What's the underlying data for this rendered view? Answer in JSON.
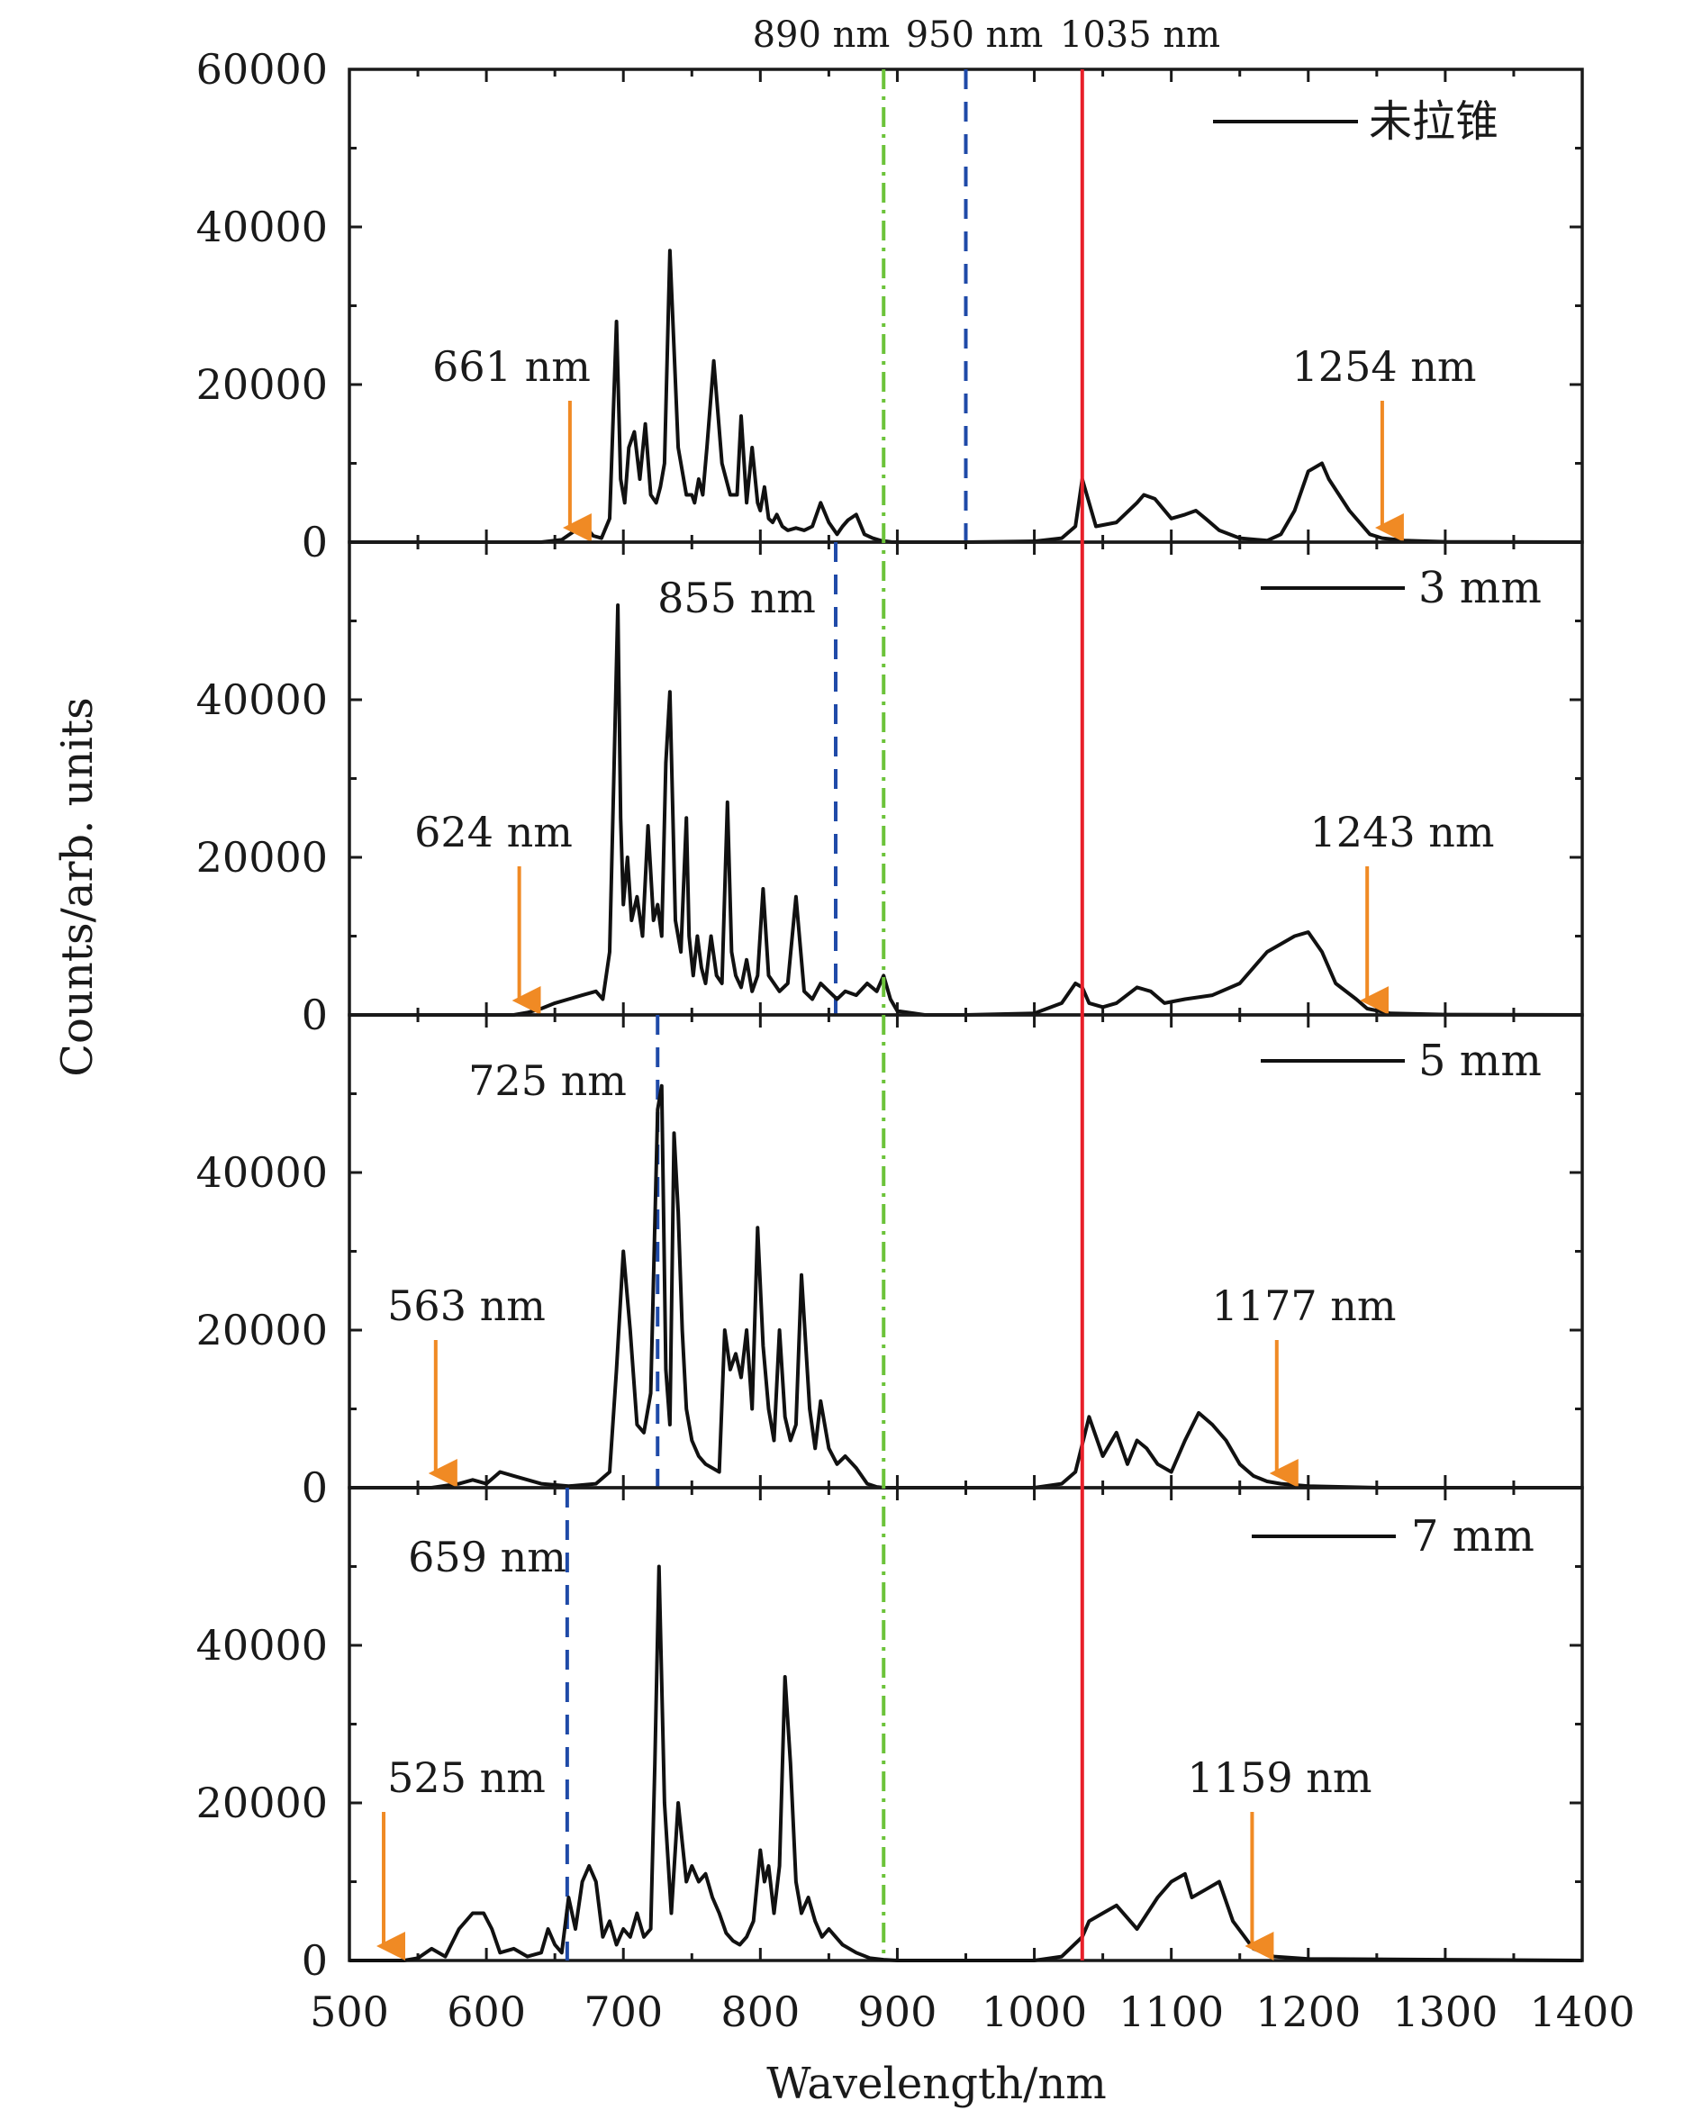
{
  "chart_data": {
    "type": "line",
    "xlabel": "Wavelength/nm",
    "ylabel": "Counts/arb. units",
    "xlim": [
      500,
      1400
    ],
    "ylim": [
      0,
      60000
    ],
    "x_ticks": [
      "500",
      "600",
      "700",
      "800",
      "900",
      "1000",
      "1100",
      "1200",
      "1300",
      "1400"
    ],
    "y_ticks": [
      "0",
      "20000",
      "40000",
      "60000"
    ],
    "colors": {
      "trace": "#111111",
      "red_line": "#e8202a",
      "blue_dash": "#1f4aa8",
      "green_dashdot": "#6cc33a",
      "arrow": "#f08a24"
    },
    "top_labels": [
      {
        "text": "890 nm",
        "x": 890
      },
      {
        "text": "950 nm",
        "x": 950
      },
      {
        "text": "1035 nm",
        "x": 1035
      }
    ],
    "reference_lines": [
      {
        "x": 890,
        "style": "dash-dot",
        "color": "green_dashdot"
      },
      {
        "x": 1035,
        "style": "solid",
        "color": "red_line"
      }
    ],
    "panels": [
      {
        "legend": "未拉锥",
        "blue_line": {
          "x": 950,
          "label": ""
        },
        "arrows": [
          {
            "x": 661,
            "label": "661 nm"
          },
          {
            "x": 1254,
            "label": "1254 nm"
          }
        ],
        "series": [
          {
            "x": [
              500,
              600,
              640,
              655,
              665,
              672,
              678,
              684,
              690,
              695,
              698,
              701,
              704,
              708,
              712,
              716,
              720,
              724,
              727,
              730,
              734,
              740,
              746,
              750,
              752,
              755,
              758,
              761,
              766,
              772,
              778,
              783,
              786,
              790,
              794,
              798,
              800,
              803,
              806,
              809,
              812,
              816,
              820,
              826,
              832,
              838,
              844,
              850,
              856,
              860,
              864,
              870,
              876,
              882,
              888,
              892,
              896,
              900,
              910,
              950,
              1000,
              1020,
              1030,
              1035,
              1040,
              1045,
              1060,
              1075,
              1080,
              1088,
              1100,
              1110,
              1118,
              1125,
              1135,
              1150,
              1170,
              1180,
              1190,
              1200,
              1210,
              1215,
              1230,
              1245,
              1254,
              1270,
              1300,
              1400
            ],
            "y": [
              0,
              0,
              0,
              300,
              1500,
              2000,
              800,
              500,
              3000,
              28000,
              8000,
              5000,
              12000,
              14000,
              8000,
              15000,
              6000,
              5000,
              7000,
              10000,
              37000,
              12000,
              6000,
              6000,
              5000,
              8000,
              6000,
              12000,
              23000,
              10000,
              6000,
              6000,
              16000,
              5000,
              12000,
              5000,
              4000,
              7000,
              3000,
              2500,
              3500,
              2000,
              1500,
              1800,
              1500,
              2000,
              5000,
              2500,
              1000,
              2000,
              2800,
              3500,
              1000,
              500,
              200,
              100,
              0,
              0,
              0,
              0,
              100,
              500,
              2000,
              8000,
              5000,
              2000,
              2500,
              5000,
              6000,
              5500,
              3000,
              3500,
              4000,
              3000,
              1500,
              500,
              200,
              1000,
              4000,
              9000,
              10000,
              8000,
              4000,
              1000,
              500,
              200,
              50,
              0
            ]
          }
        ]
      },
      {
        "legend": "3 mm",
        "blue_line": {
          "x": 855,
          "label": "855 nm"
        },
        "arrows": [
          {
            "x": 624,
            "label": "624 nm"
          },
          {
            "x": 1243,
            "label": "1243 nm"
          }
        ],
        "series": [
          {
            "x": [
              500,
              600,
              620,
              630,
              640,
              650,
              660,
              670,
              680,
              685,
              690,
              693,
              696,
              698,
              700,
              703,
              706,
              710,
              714,
              718,
              722,
              725,
              728,
              731,
              734,
              738,
              742,
              746,
              748,
              751,
              754,
              757,
              760,
              764,
              768,
              772,
              776,
              779,
              782,
              786,
              790,
              794,
              798,
              802,
              806,
              810,
              814,
              820,
              826,
              832,
              838,
              844,
              850,
              856,
              862,
              870,
              878,
              885,
              890,
              895,
              900,
              920,
              950,
              1000,
              1020,
              1030,
              1035,
              1040,
              1050,
              1060,
              1075,
              1085,
              1095,
              1110,
              1130,
              1150,
              1170,
              1180,
              1190,
              1200,
              1210,
              1220,
              1235,
              1243,
              1260,
              1300,
              1400
            ],
            "y": [
              0,
              0,
              0,
              300,
              800,
              1500,
              2000,
              2500,
              3000,
              2000,
              8000,
              30000,
              52000,
              25000,
              14000,
              20000,
              12000,
              15000,
              10000,
              24000,
              12000,
              14000,
              10000,
              32000,
              41000,
              12000,
              8000,
              25000,
              10000,
              5000,
              10000,
              6000,
              4000,
              10000,
              5000,
              4000,
              27000,
              8000,
              5000,
              3500,
              7000,
              3000,
              5000,
              16000,
              5000,
              4000,
              3000,
              4000,
              15000,
              3000,
              2000,
              4000,
              3000,
              2000,
              3000,
              2500,
              4000,
              3000,
              5000,
              2000,
              500,
              0,
              0,
              200,
              1500,
              4000,
              3500,
              1500,
              1000,
              1500,
              3500,
              3000,
              1500,
              2000,
              2500,
              4000,
              8000,
              9000,
              10000,
              10500,
              8000,
              4000,
              2000,
              800,
              200,
              50,
              0
            ]
          }
        ]
      },
      {
        "legend": "5 mm",
        "blue_line": {
          "x": 725,
          "label": "725 nm"
        },
        "arrows": [
          {
            "x": 563,
            "label": "563 nm"
          },
          {
            "x": 1177,
            "label": "1177 nm"
          }
        ],
        "series": [
          {
            "x": [
              500,
              560,
              580,
              590,
              600,
              610,
              620,
              640,
              660,
              680,
              690,
              695,
              700,
              705,
              710,
              715,
              720,
              725,
              728,
              731,
              734,
              737,
              740,
              743,
              746,
              750,
              755,
              760,
              770,
              774,
              778,
              782,
              786,
              790,
              794,
              798,
              802,
              806,
              810,
              814,
              818,
              822,
              826,
              830,
              836,
              840,
              844,
              850,
              856,
              862,
              870,
              878,
              885,
              890,
              900,
              950,
              1000,
              1020,
              1030,
              1040,
              1050,
              1060,
              1068,
              1075,
              1082,
              1090,
              1100,
              1110,
              1120,
              1130,
              1140,
              1150,
              1160,
              1170,
              1180,
              1200,
              1250,
              1300,
              1400
            ],
            "y": [
              0,
              0,
              500,
              1000,
              500,
              2000,
              1500,
              500,
              200,
              500,
              2000,
              15000,
              30000,
              20000,
              8000,
              7000,
              12000,
              48000,
              51000,
              15000,
              8000,
              45000,
              35000,
              20000,
              10000,
              6000,
              4000,
              3000,
              2000,
              20000,
              15000,
              17000,
              14000,
              20000,
              10000,
              33000,
              18000,
              10000,
              6000,
              20000,
              9000,
              6000,
              8000,
              27000,
              10000,
              5000,
              11000,
              5000,
              3000,
              4000,
              2500,
              500,
              100,
              0,
              0,
              0,
              0,
              500,
              2000,
              9000,
              4000,
              7000,
              3000,
              6000,
              5000,
              3000,
              2000,
              6000,
              9500,
              8000,
              6000,
              3000,
              1500,
              800,
              500,
              200,
              0,
              0,
              0
            ]
          }
        ]
      },
      {
        "legend": "7 mm",
        "blue_line": {
          "x": 659,
          "label": "659 nm"
        },
        "arrows": [
          {
            "x": 525,
            "label": "525 nm"
          },
          {
            "x": 1159,
            "label": "1159 nm"
          }
        ],
        "series": [
          {
            "x": [
              500,
              540,
              550,
              560,
              570,
              580,
              590,
              598,
              604,
              610,
              620,
              630,
              640,
              645,
              650,
              655,
              660,
              665,
              670,
              675,
              680,
              685,
              690,
              695,
              700,
              705,
              710,
              715,
              720,
              723,
              726,
              730,
              735,
              740,
              743,
              746,
              750,
              755,
              760,
              765,
              770,
              775,
              780,
              785,
              790,
              795,
              800,
              803,
              806,
              810,
              814,
              818,
              822,
              826,
              830,
              835,
              840,
              845,
              850,
              855,
              860,
              870,
              880,
              890,
              900,
              950,
              1000,
              1020,
              1035,
              1040,
              1050,
              1060,
              1075,
              1090,
              1100,
              1110,
              1115,
              1125,
              1135,
              1145,
              1160,
              1175,
              1200,
              1300,
              1400
            ],
            "y": [
              0,
              0,
              300,
              1500,
              500,
              4000,
              6000,
              6000,
              4000,
              1000,
              1500,
              500,
              1000,
              4000,
              2000,
              1000,
              8000,
              4000,
              10000,
              12000,
              10000,
              3000,
              5000,
              2000,
              4000,
              3000,
              6000,
              3000,
              4000,
              25000,
              50000,
              20000,
              6000,
              20000,
              15000,
              10000,
              12000,
              10000,
              11000,
              8000,
              6000,
              3500,
              2500,
              2000,
              3000,
              5000,
              14000,
              10000,
              12000,
              6000,
              12000,
              36000,
              25000,
              10000,
              6000,
              8000,
              5000,
              3000,
              4000,
              3000,
              2000,
              1000,
              300,
              100,
              0,
              0,
              0,
              500,
              3000,
              5000,
              6000,
              7000,
              4000,
              8000,
              10000,
              11000,
              8000,
              9000,
              10000,
              5000,
              1500,
              500,
              200,
              100,
              0
            ]
          }
        ]
      }
    ]
  }
}
